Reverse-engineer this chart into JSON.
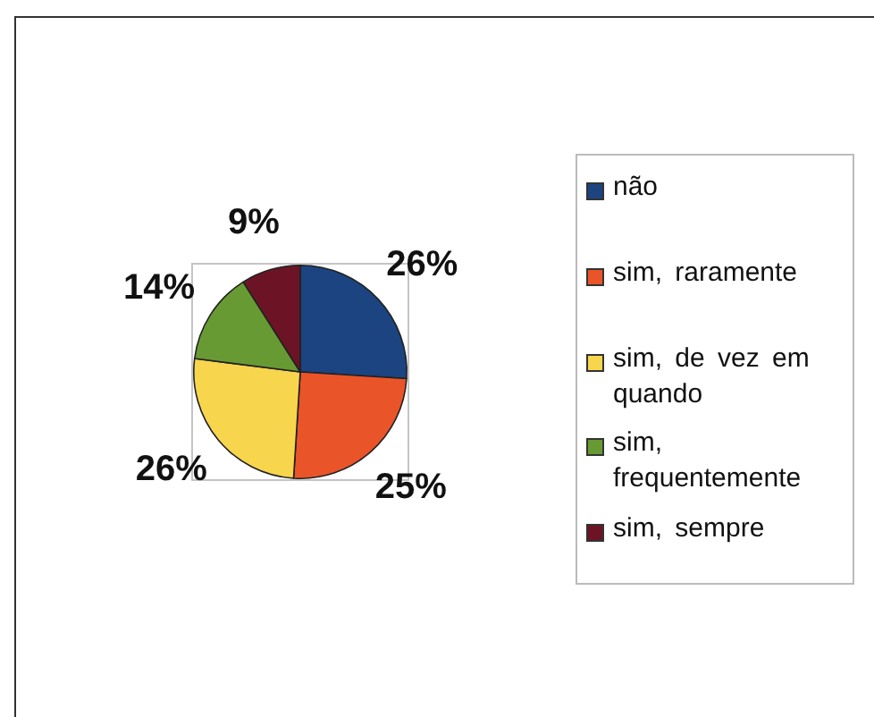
{
  "chart_data": {
    "type": "pie",
    "categories": [
      "não",
      "sim, raramente",
      "sim, de vez em quando",
      "sim, frequentemente",
      "sim, sempre"
    ],
    "values": [
      26,
      25,
      26,
      14,
      9
    ],
    "colors": [
      "#1b4480",
      "#ea5429",
      "#f7d54d",
      "#689a33",
      "#6c1425"
    ],
    "value_labels": [
      "26%",
      "25%",
      "26%",
      "14%",
      "9%"
    ],
    "legend": "right"
  }
}
